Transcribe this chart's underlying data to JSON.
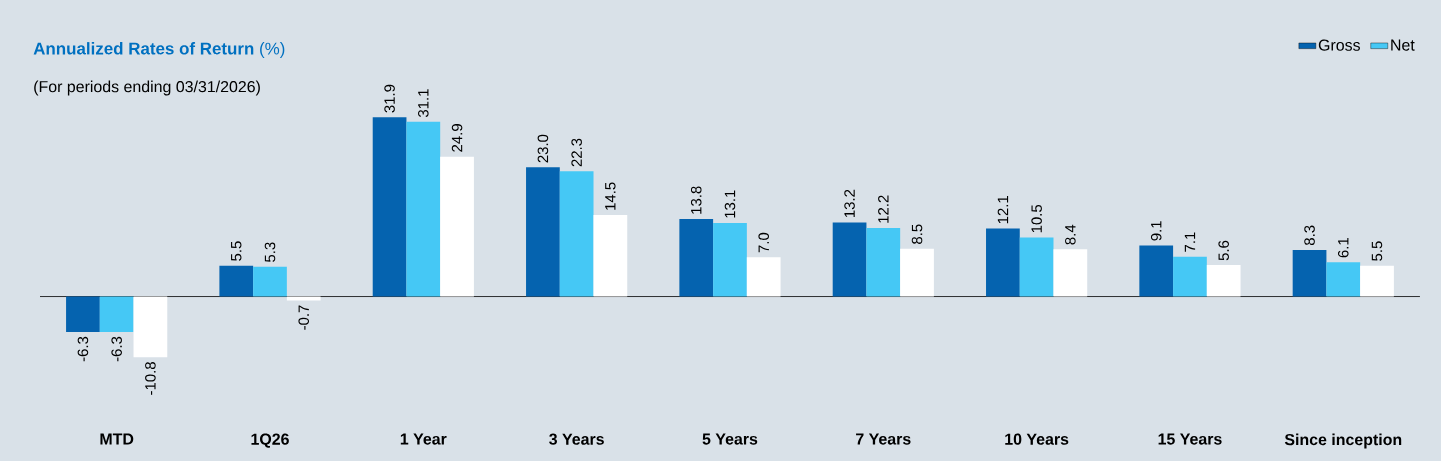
{
  "chart_data": {
    "type": "bar",
    "title": "**Annualized Rates of Return** (%)",
    "subtitle": "(For periods ending 03/31/2026)",
    "categories": [
      "MTD",
      "1Q26",
      "1 Year",
      "3 Years",
      "5 Years",
      "7 Years",
      "10 Years",
      "15 Years",
      "Since inception"
    ],
    "series": [
      {
        "name": "Gross",
        "color": "#0563af",
        "values": [
          -6.3,
          5.5,
          31.9,
          23.0,
          13.8,
          13.2,
          12.1,
          9.1,
          8.3
        ],
        "value_labels": [
          "-6.3",
          "5.5",
          "31.9",
          "23.0",
          "13.8",
          "13.2",
          "12.1",
          "9.1",
          "8.3"
        ]
      },
      {
        "name": "Net",
        "color": "#45c8f5",
        "values": [
          -6.3,
          5.3,
          31.1,
          22.3,
          13.1,
          12.2,
          10.5,
          7.1,
          6.1
        ],
        "value_labels": [
          "-6.3",
          "5.3",
          "31.1",
          "22.3",
          "13.1",
          "12.2",
          "10.5",
          "7.1",
          "6.1"
        ]
      },
      {
        "color": "#ffffff",
        "values": [
          -10.8,
          -0.7,
          24.9,
          14.5,
          7.0,
          8.5,
          8.4,
          5.6,
          5.5
        ],
        "value_labels": [
          "-10.8",
          "-0.7",
          "24.9",
          "14.5",
          "7.0",
          "8.5",
          "8.4",
          "5.6",
          "5.5"
        ]
      }
    ],
    "legend": "top right"
  }
}
